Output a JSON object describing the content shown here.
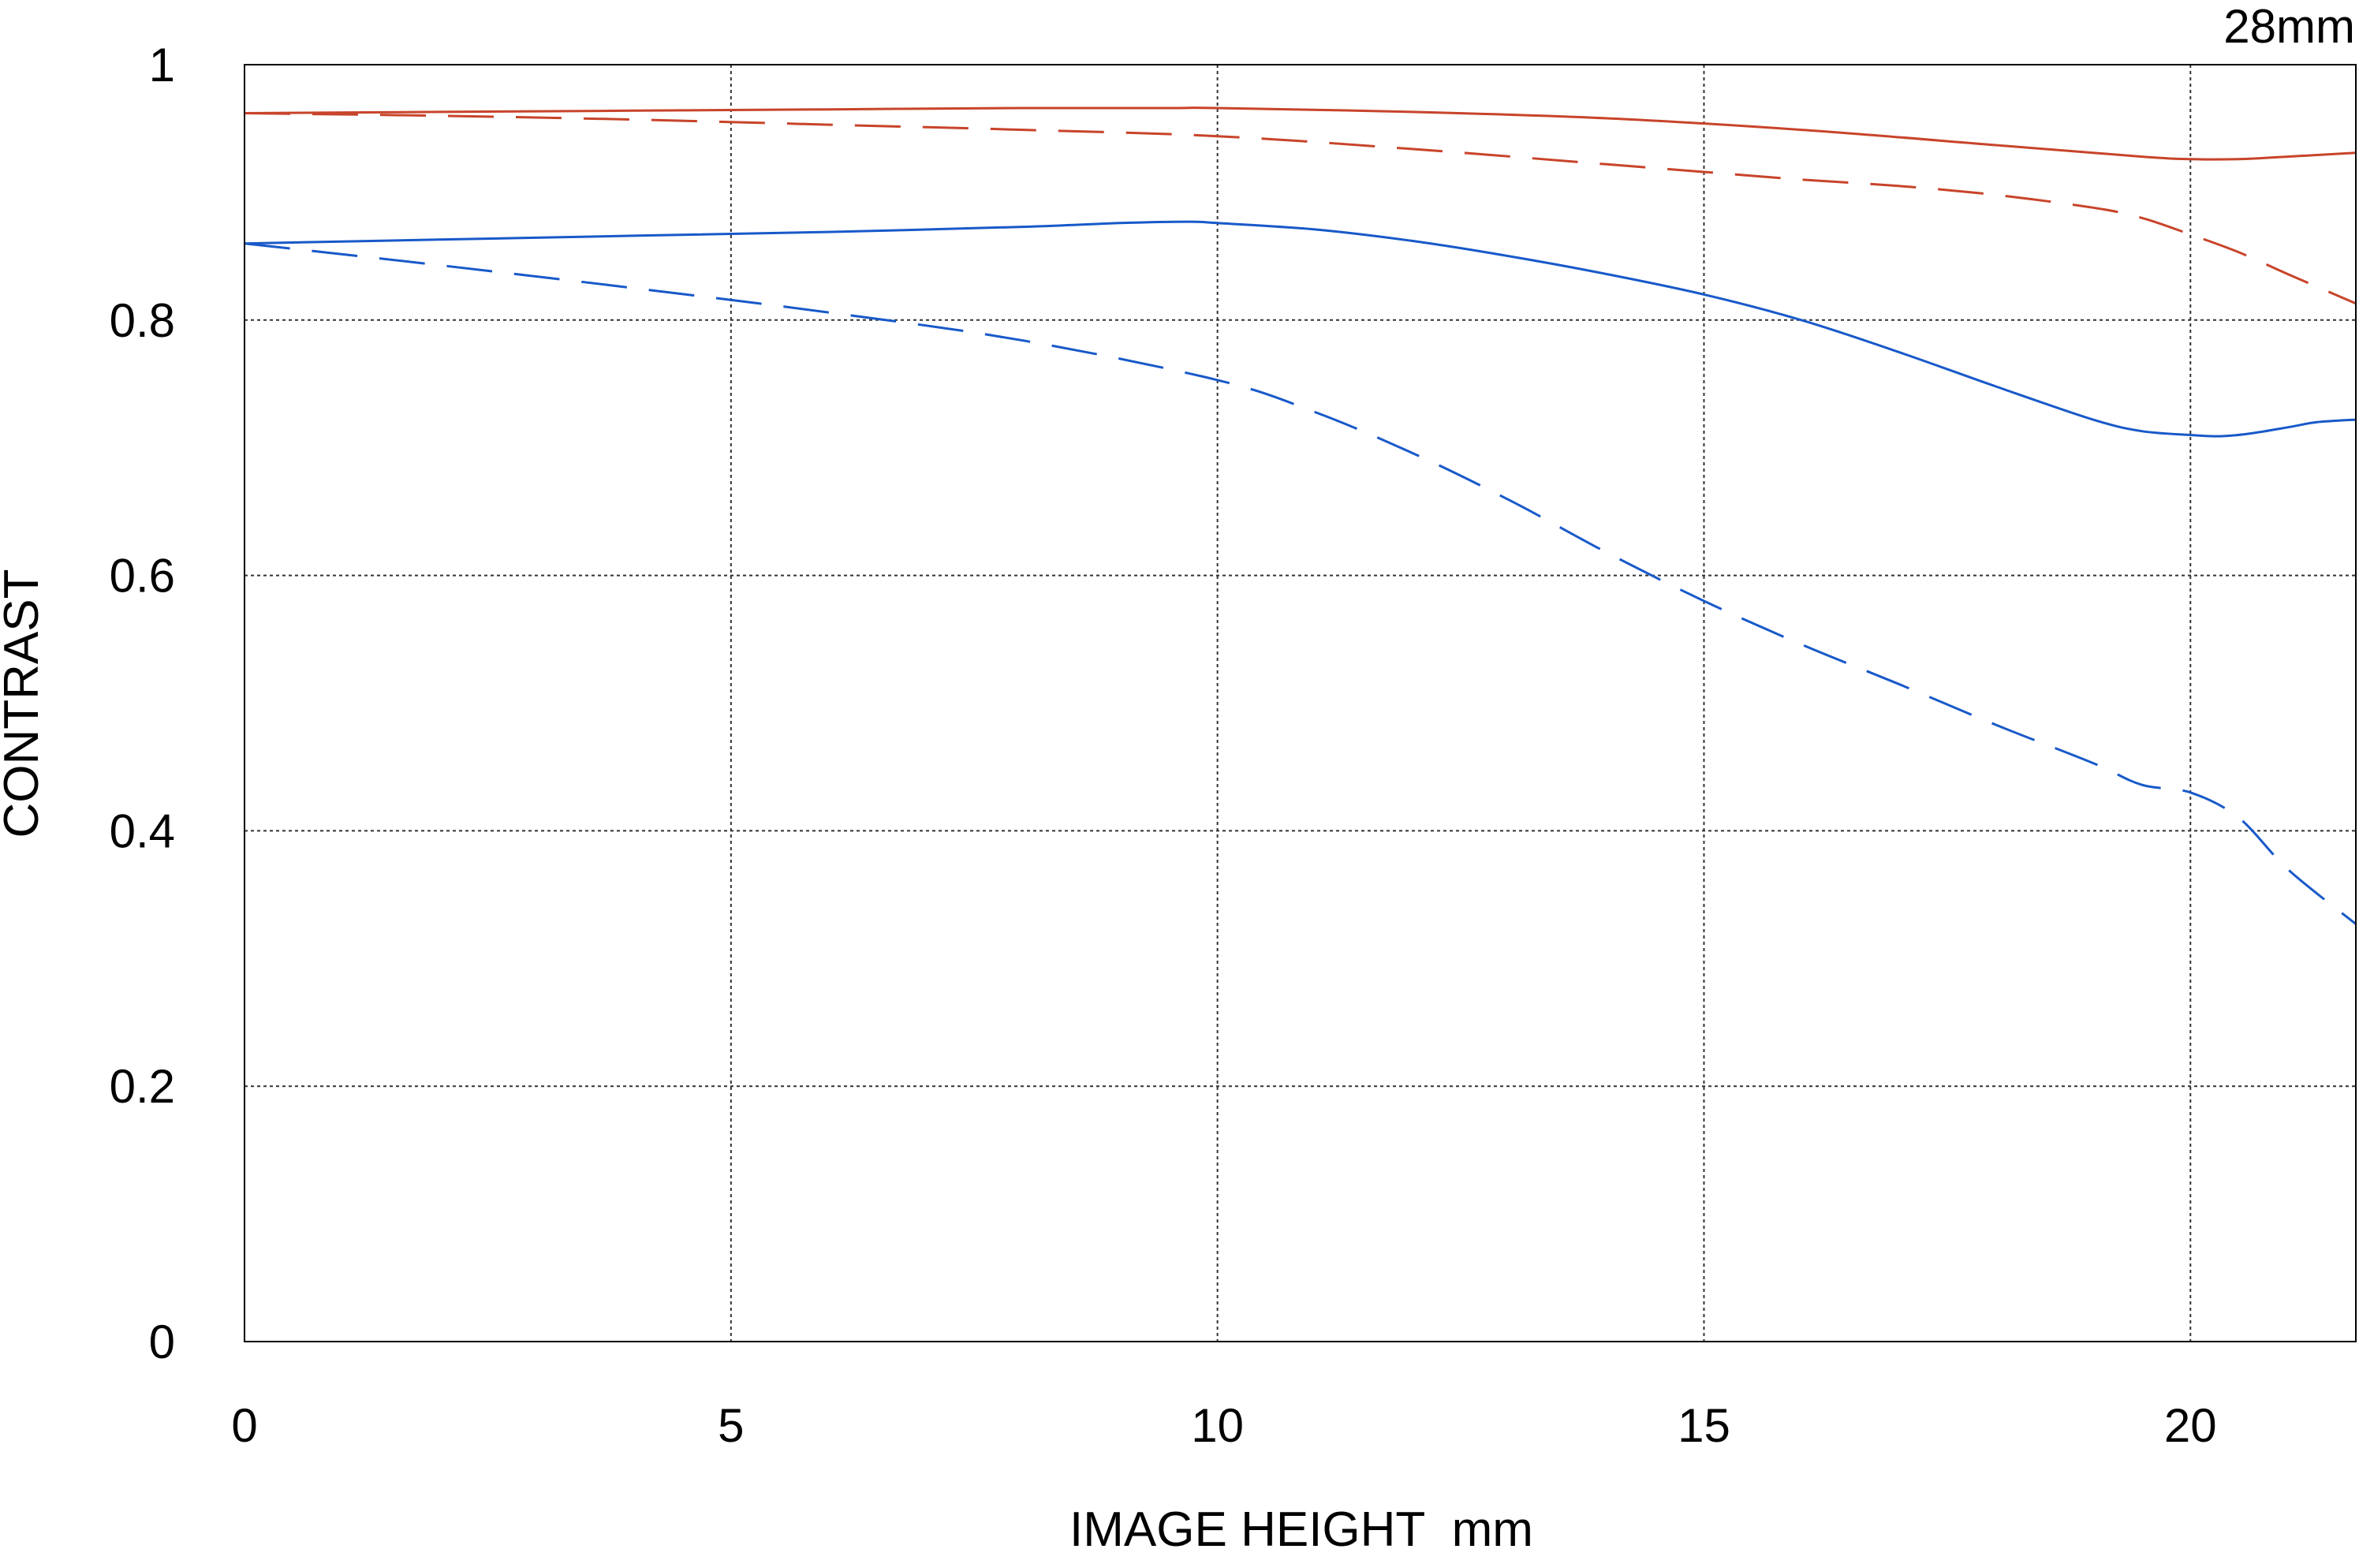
{
  "chart_data": {
    "type": "line",
    "corner_label": "28mm",
    "xlabel": "IMAGE HEIGHT  mm",
    "ylabel": "CONTRAST",
    "xlim": [
      0,
      21.7
    ],
    "ylim": [
      0,
      1
    ],
    "x_ticks": [
      0,
      5,
      10,
      15,
      20
    ],
    "x_tick_labels": [
      "0",
      "5",
      "10",
      "15",
      "20"
    ],
    "y_ticks": [
      0,
      0.2,
      0.4,
      0.6,
      0.8,
      1
    ],
    "y_tick_labels": [
      "0",
      "0.2",
      "0.4",
      "0.6",
      "0.8",
      "1"
    ],
    "grid": true,
    "grid_style": "dotted",
    "series": [
      {
        "color": "#c8442a",
        "dash": "solid",
        "x": [
          0,
          2,
          4,
          6,
          8,
          9.5,
          10,
          12,
          14,
          16,
          18,
          19.5,
          20,
          20.5,
          21,
          21.7
        ],
        "y": [
          0.962,
          0.963,
          0.964,
          0.965,
          0.966,
          0.966,
          0.966,
          0.963,
          0.958,
          0.949,
          0.937,
          0.928,
          0.926,
          0.926,
          0.928,
          0.931
        ]
      },
      {
        "color": "#c8442a",
        "dash": "dashed",
        "x": [
          0,
          2,
          4,
          6,
          8,
          10,
          12,
          14,
          15,
          16,
          17,
          18,
          19,
          19.5,
          20,
          20.5,
          21,
          21.7
        ],
        "y": [
          0.962,
          0.96,
          0.957,
          0.953,
          0.949,
          0.944,
          0.934,
          0.922,
          0.916,
          0.91,
          0.905,
          0.898,
          0.888,
          0.88,
          0.867,
          0.853,
          0.836,
          0.813
        ]
      },
      {
        "color": "#1859c9",
        "dash": "solid",
        "x": [
          0,
          2,
          4,
          6,
          8,
          9,
          9.7,
          10,
          11,
          12,
          13,
          14,
          15,
          16,
          17,
          18,
          19,
          19.5,
          20,
          20.3,
          20.6,
          21,
          21.3,
          21.7
        ],
        "y": [
          0.86,
          0.863,
          0.866,
          0.869,
          0.873,
          0.876,
          0.877,
          0.876,
          0.871,
          0.862,
          0.85,
          0.836,
          0.82,
          0.8,
          0.775,
          0.748,
          0.722,
          0.713,
          0.71,
          0.709,
          0.711,
          0.716,
          0.72,
          0.722
        ]
      },
      {
        "color": "#1859c9",
        "dash": "dashed",
        "x": [
          0,
          2,
          4,
          6,
          8,
          10,
          11,
          12,
          13,
          14,
          15,
          16,
          17,
          18,
          19,
          19.5,
          20,
          20.5,
          21,
          21.7
        ],
        "y": [
          0.86,
          0.843,
          0.825,
          0.806,
          0.784,
          0.753,
          0.728,
          0.696,
          0.659,
          0.618,
          0.58,
          0.546,
          0.515,
          0.483,
          0.453,
          0.436,
          0.43,
          0.41,
          0.37,
          0.327
        ]
      }
    ]
  }
}
